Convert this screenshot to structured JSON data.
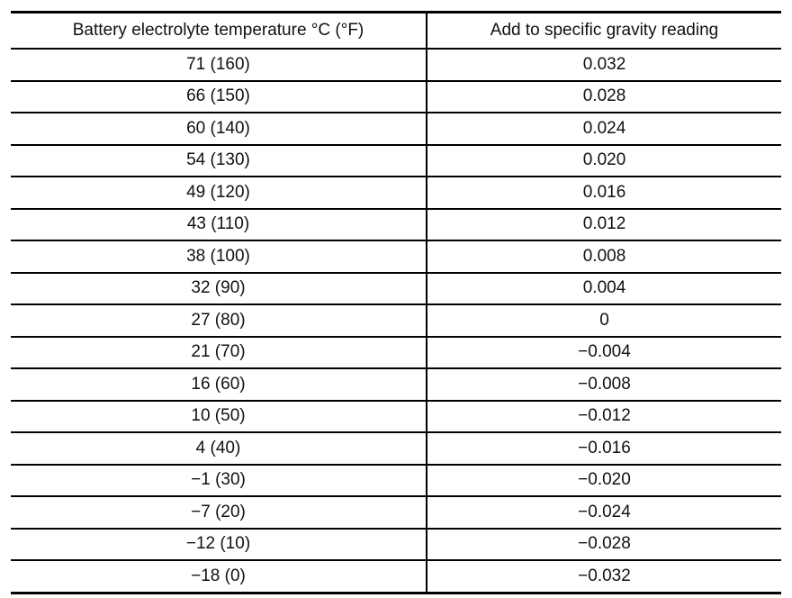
{
  "table": {
    "header": [
      "Battery electrolyte temperature °C (°F)",
      "Add to specific gravity reading"
    ],
    "rows": [
      [
        "71 (160)",
        "0.032"
      ],
      [
        "66 (150)",
        "0.028"
      ],
      [
        "60 (140)",
        "0.024"
      ],
      [
        "54 (130)",
        "0.020"
      ],
      [
        "49 (120)",
        "0.016"
      ],
      [
        "43 (110)",
        "0.012"
      ],
      [
        "38 (100)",
        "0.008"
      ],
      [
        "32 (90)",
        "0.004"
      ],
      [
        "27 (80)",
        "0"
      ],
      [
        "21 (70)",
        "−0.004"
      ],
      [
        "16 (60)",
        "−0.008"
      ],
      [
        "10 (50)",
        "−0.012"
      ],
      [
        "4 (40)",
        "−0.016"
      ],
      [
        "−1 (30)",
        "−0.020"
      ],
      [
        "−7 (20)",
        "−0.024"
      ],
      [
        "−12 (10)",
        "−0.028"
      ],
      [
        "−18 (0)",
        "−0.032"
      ]
    ]
  }
}
